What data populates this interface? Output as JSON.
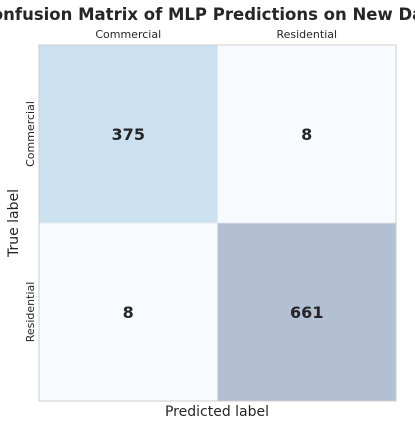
{
  "chart_data": {
    "type": "heatmap",
    "title": "Confusion Matrix of MLP Predictions on New Data",
    "xlabel": "Predicted label",
    "ylabel": "True label",
    "x_categories": [
      "Commercial",
      "Residential"
    ],
    "y_categories": [
      "Commercial",
      "Residential"
    ],
    "values": [
      [
        375,
        8
      ],
      [
        8,
        661
      ]
    ],
    "x_tick_position": "top",
    "grid": false,
    "colorbar": false,
    "colormap": "Blues",
    "cell_colors": [
      [
        "#cbe1f0",
        "#f7fbff"
      ],
      [
        "#f7fbff",
        "#b3bfd2"
      ]
    ]
  }
}
